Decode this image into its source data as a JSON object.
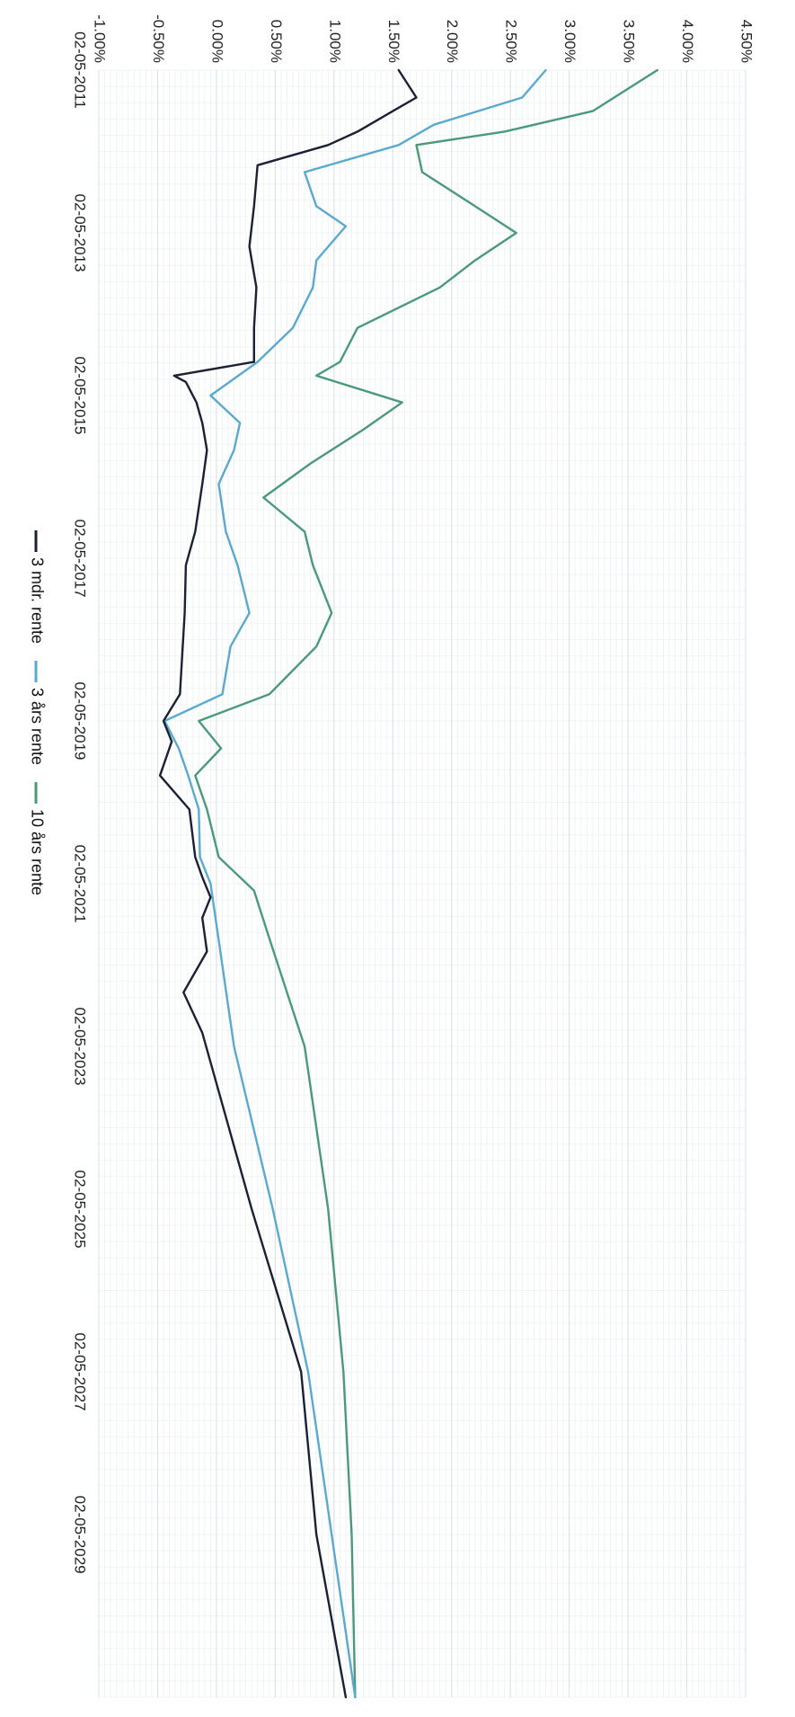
{
  "chart_data": {
    "type": "line",
    "orientation": "rotated-90-clockwise",
    "title": "",
    "xlabel": "",
    "ylabel": "",
    "xlim": [
      "02-05-2011",
      "02-05-2031"
    ],
    "ylim": [
      -0.01,
      0.045
    ],
    "y_ticks": [
      -0.01,
      -0.005,
      0.0,
      0.005,
      0.01,
      0.015,
      0.02,
      0.025,
      0.03,
      0.035,
      0.04,
      0.045
    ],
    "y_tick_labels": [
      "-1.00%",
      "-0.50%",
      "0.00%",
      "0.50%",
      "1.00%",
      "1.50%",
      "2.00%",
      "2.50%",
      "3.00%",
      "3.50%",
      "4.00%",
      "4.50%"
    ],
    "x_ticks": [
      "02-05-2011",
      "02-05-2013",
      "02-05-2015",
      "02-05-2017",
      "02-05-2019",
      "02-05-2021",
      "02-05-2023",
      "02-05-2025",
      "02-05-2027",
      "02-05-2029"
    ],
    "grid": true,
    "legend_position": "bottom",
    "series": [
      {
        "name": "3 mdr. rente",
        "color": "#1a2133",
        "points": [
          [
            "02-05-2011",
            0.0155
          ],
          [
            "02-09-2011",
            0.017
          ],
          [
            "02-11-2011",
            0.015
          ],
          [
            "02-02-2012",
            0.012
          ],
          [
            "02-04-2012",
            0.0095
          ],
          [
            "02-07-2012",
            0.0035
          ],
          [
            "02-01-2013",
            0.0032
          ],
          [
            "02-07-2013",
            0.0028
          ],
          [
            "02-01-2014",
            0.0034
          ],
          [
            "02-07-2014",
            0.0032
          ],
          [
            "02-12-2014",
            0.0032
          ],
          [
            "02-02-2015",
            -0.0036
          ],
          [
            "02-03-2015",
            -0.0026
          ],
          [
            "02-06-2015",
            -0.0017
          ],
          [
            "02-09-2015",
            -0.0012
          ],
          [
            "02-01-2016",
            -0.0008
          ],
          [
            "02-06-2016",
            -0.0012
          ],
          [
            "02-01-2017",
            -0.0018
          ],
          [
            "02-06-2017",
            -0.0026
          ],
          [
            "02-01-2018",
            -0.0027
          ],
          [
            "02-01-2019",
            -0.0031
          ],
          [
            "02-05-2019",
            -0.0045
          ],
          [
            "02-08-2019",
            -0.0038
          ],
          [
            "02-01-2020",
            -0.0048
          ],
          [
            "02-06-2020",
            -0.0023
          ],
          [
            "02-01-2021",
            -0.0018
          ],
          [
            "02-04-2021",
            -0.0012
          ],
          [
            "02-07-2021",
            -0.0005
          ],
          [
            "02-10-2021",
            -0.0012
          ],
          [
            "02-03-2022",
            -0.0008
          ],
          [
            "02-09-2022",
            -0.0028
          ],
          [
            "02-03-2023",
            -0.0012
          ],
          [
            "02-05-2025",
            0.003
          ],
          [
            "02-05-2027",
            0.0072
          ],
          [
            "02-05-2029",
            0.0085
          ],
          [
            "02-05-2031",
            0.011
          ]
        ]
      },
      {
        "name": "3 års rente",
        "color": "#5aa9cf",
        "points": [
          [
            "02-05-2011",
            0.028
          ],
          [
            "02-09-2011",
            0.026
          ],
          [
            "02-01-2012",
            0.0185
          ],
          [
            "02-04-2012",
            0.0155
          ],
          [
            "02-08-2012",
            0.0075
          ],
          [
            "02-01-2013",
            0.0085
          ],
          [
            "02-04-2013",
            0.011
          ],
          [
            "02-09-2013",
            0.0085
          ],
          [
            "02-01-2014",
            0.0082
          ],
          [
            "02-07-2014",
            0.0065
          ],
          [
            "02-12-2014",
            0.0035
          ],
          [
            "02-05-2015",
            -0.0005
          ],
          [
            "02-09-2015",
            0.002
          ],
          [
            "02-01-2016",
            0.0015
          ],
          [
            "02-06-2016",
            0.0002
          ],
          [
            "02-01-2017",
            0.0008
          ],
          [
            "02-06-2017",
            0.0018
          ],
          [
            "02-01-2018",
            0.0028
          ],
          [
            "02-06-2018",
            0.0012
          ],
          [
            "02-01-2019",
            0.0005
          ],
          [
            "02-05-2019",
            -0.0044
          ],
          [
            "02-09-2019",
            -0.0032
          ],
          [
            "02-01-2020",
            -0.0024
          ],
          [
            "02-06-2020",
            -0.0015
          ],
          [
            "02-01-2021",
            -0.0014
          ],
          [
            "02-05-2021",
            -0.0005
          ],
          [
            "02-05-2023",
            0.0015
          ],
          [
            "02-05-2025",
            0.0048
          ],
          [
            "02-05-2027",
            0.0078
          ],
          [
            "02-05-2029",
            0.0098
          ],
          [
            "02-05-2031",
            0.0118
          ]
        ]
      },
      {
        "name": "10 års rente",
        "color": "#4a9a7a",
        "points": [
          [
            "02-05-2011",
            0.0375
          ],
          [
            "02-11-2011",
            0.032
          ],
          [
            "02-02-2012",
            0.0245
          ],
          [
            "02-04-2012",
            0.017
          ],
          [
            "02-08-2012",
            0.0175
          ],
          [
            "02-01-2013",
            0.022
          ],
          [
            "02-05-2013",
            0.0255
          ],
          [
            "02-09-2013",
            0.022
          ],
          [
            "02-01-2014",
            0.019
          ],
          [
            "02-07-2014",
            0.012
          ],
          [
            "02-12-2014",
            0.0105
          ],
          [
            "02-02-2015",
            0.0085
          ],
          [
            "02-06-2015",
            0.0158
          ],
          [
            "02-10-2015",
            0.0125
          ],
          [
            "02-03-2016",
            0.008
          ],
          [
            "02-08-2016",
            0.004
          ],
          [
            "02-01-2017",
            0.0075
          ],
          [
            "02-06-2017",
            0.0082
          ],
          [
            "02-01-2018",
            0.0098
          ],
          [
            "02-06-2018",
            0.0085
          ],
          [
            "02-01-2019",
            0.0045
          ],
          [
            "02-05-2019",
            -0.0015
          ],
          [
            "02-09-2019",
            0.0004
          ],
          [
            "02-01-2020",
            -0.0018
          ],
          [
            "02-06-2020",
            -0.0008
          ],
          [
            "02-01-2021",
            0.0002
          ],
          [
            "02-06-2021",
            0.0032
          ],
          [
            "02-01-2022",
            0.0045
          ],
          [
            "02-05-2023",
            0.0075
          ],
          [
            "02-05-2025",
            0.0095
          ],
          [
            "02-05-2027",
            0.0108
          ],
          [
            "02-05-2029",
            0.0115
          ],
          [
            "02-05-2031",
            0.0118
          ]
        ]
      }
    ]
  }
}
